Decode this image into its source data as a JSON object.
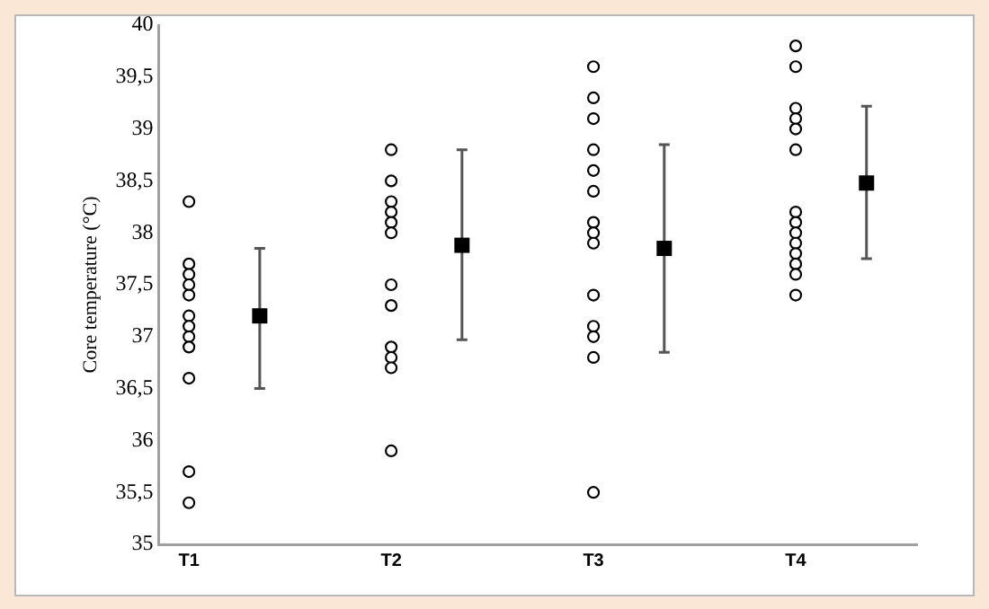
{
  "chart_data": {
    "type": "scatter",
    "ylabel": "Core temperature (°C)",
    "categories": [
      "T1",
      "T2",
      "T3",
      "T4"
    ],
    "ylim": [
      35,
      40
    ],
    "yticks": [
      35,
      {
        "value": 35.5,
        "label": "35,5"
      },
      36,
      {
        "value": 36.5,
        "label": "36,5"
      },
      37,
      {
        "value": 37.5,
        "label": "37,5"
      },
      38,
      {
        "value": 38.5,
        "label": "38,5"
      },
      39,
      {
        "value": 39.5,
        "label": "39,5"
      },
      40
    ],
    "grid": false,
    "legend": false,
    "series": [
      {
        "marker": "circle",
        "color": "#000000",
        "x": [
          "T1",
          "T1",
          "T1",
          "T1",
          "T1",
          "T1",
          "T1",
          "T1",
          "T1",
          "T1",
          "T1",
          "T1",
          "T1",
          "T2",
          "T2",
          "T2",
          "T2",
          "T2",
          "T2",
          "T2",
          "T2",
          "T2",
          "T2",
          "T2",
          "T2",
          "T3",
          "T3",
          "T3",
          "T3",
          "T3",
          "T3",
          "T3",
          "T3",
          "T3",
          "T3",
          "T3",
          "T3",
          "T3",
          "T3",
          "T4",
          "T4",
          "T4",
          "T4",
          "T4",
          "T4",
          "T4",
          "T4",
          "T4",
          "T4",
          "T4",
          "T4",
          "T4",
          "T4"
        ],
        "values": [
          38.3,
          37.7,
          37.6,
          37.5,
          37.4,
          null,
          37.2,
          37.1,
          37.0,
          36.9,
          36.6,
          35.7,
          35.4,
          38.8,
          38.5,
          38.3,
          38.2,
          38.1,
          38.0,
          37.5,
          37.3,
          36.9,
          36.8,
          36.7,
          35.9,
          39.6,
          39.3,
          39.1,
          38.8,
          38.6,
          38.4,
          38.1,
          38.0,
          37.9,
          37.4,
          37.1,
          37.0,
          36.8,
          35.5,
          39.8,
          39.6,
          39.2,
          39.1,
          39.0,
          38.8,
          38.2,
          38.1,
          38.0,
          37.9,
          37.8,
          37.7,
          37.6,
          37.4
        ]
      },
      {
        "marker": "square",
        "color": "#000000",
        "values": [
          37.2,
          37.88,
          37.85,
          38.48
        ],
        "errors": [
          [
            36.5,
            37.85
          ],
          [
            36.97,
            38.8
          ],
          [
            36.85,
            38.85
          ],
          [
            37.75,
            39.22
          ]
        ]
      }
    ]
  }
}
